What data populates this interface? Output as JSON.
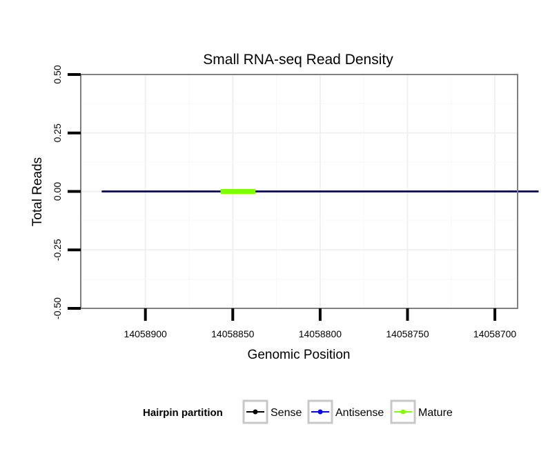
{
  "chart_data": {
    "type": "line",
    "title": "Small RNA-seq Read Density",
    "xlabel": "Genomic Position",
    "ylabel": "Total Reads",
    "x_reversed": true,
    "xlim": [
      14058937,
      14058687
    ],
    "ylim": [
      -0.5,
      0.5
    ],
    "x_ticks": [
      14058900,
      14058850,
      14058800,
      14058750,
      14058700
    ],
    "x_tick_labels": [
      "14058900",
      "14058850",
      "14058800",
      "14058750",
      "14058700"
    ],
    "y_ticks": [
      0.5,
      0.25,
      0.0,
      -0.25,
      -0.5
    ],
    "y_tick_labels": [
      "0.50",
      "0.25",
      "0.00",
      "-0.25",
      "-0.50"
    ],
    "grid": true,
    "series": [
      {
        "name": "Sense",
        "color": "#000000",
        "x": [
          14058925,
          14058675
        ],
        "y": [
          0,
          0
        ]
      },
      {
        "name": "Antisense",
        "color": "#0000ff",
        "x": [
          14058925,
          14058675
        ],
        "y": [
          0,
          0
        ]
      },
      {
        "name": "Mature",
        "color": "#7fff00",
        "x": [
          14058857,
          14058837
        ],
        "y": [
          0,
          0
        ]
      }
    ],
    "legend": {
      "title": "Hairpin partition",
      "placement": "bottom",
      "entries": [
        "Sense",
        "Antisense",
        "Mature"
      ]
    }
  }
}
